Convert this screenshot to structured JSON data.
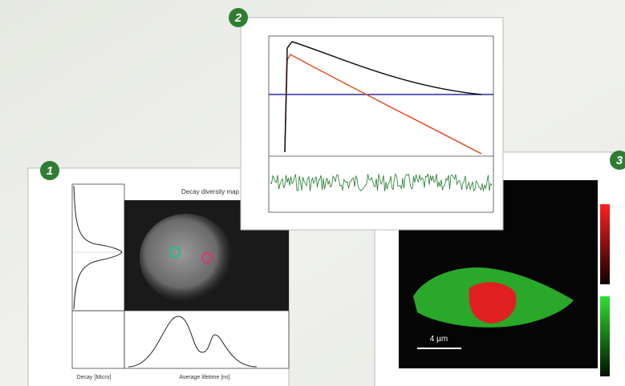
{
  "panels": [
    {
      "badge": "1",
      "title": "Decay diversity map",
      "x_label_left": "Decay [Micro]",
      "x_label_right": "Average lifetime [ns]"
    },
    {
      "badge": "2"
    },
    {
      "badge": "3",
      "scale_bar": "4 µm"
    }
  ]
}
